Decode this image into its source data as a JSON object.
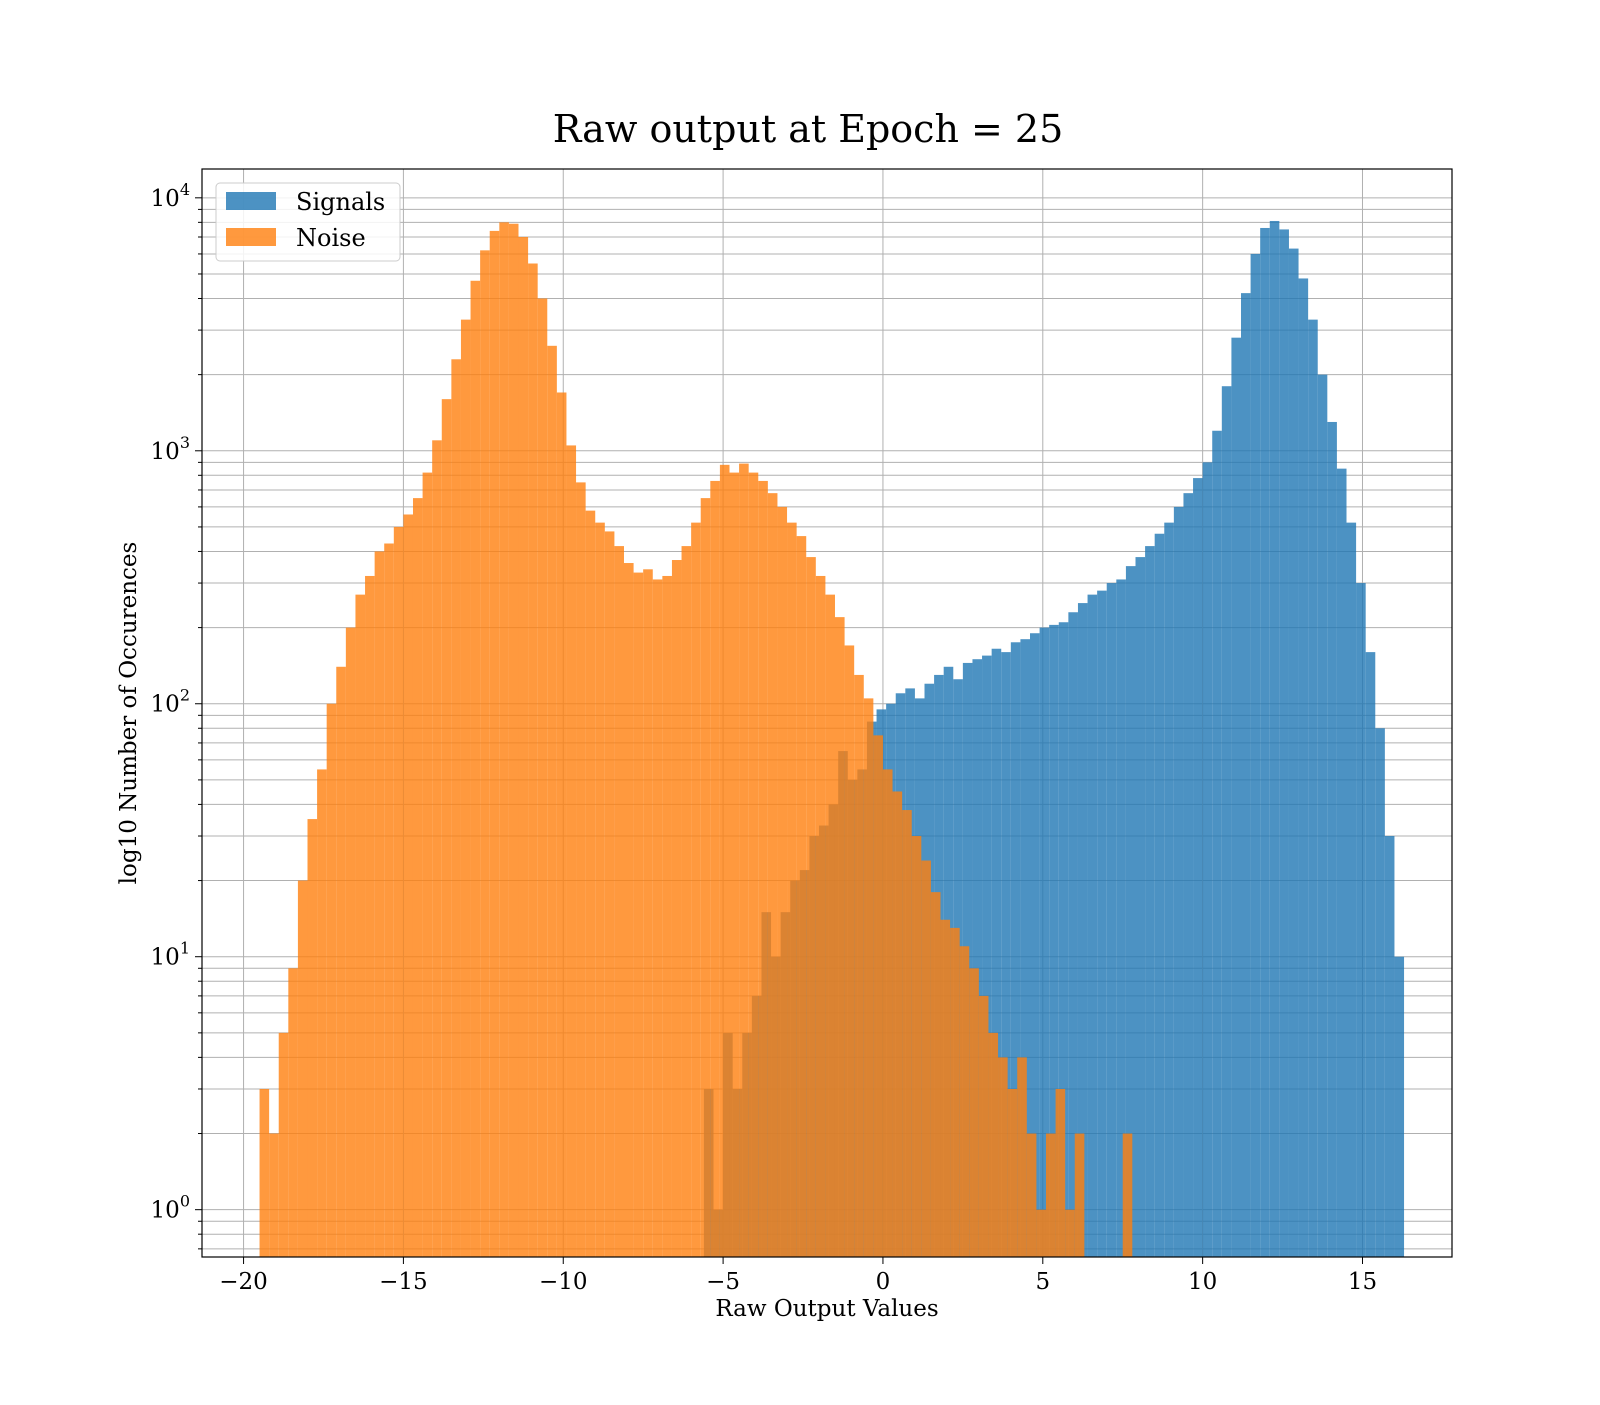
{
  "chart_data": {
    "type": "bar",
    "title": "Raw output at Epoch = 25",
    "xlabel": "Raw Output Values",
    "ylabel": "log10 Number of Occurences",
    "xlim": [
      -21.3,
      17.8
    ],
    "ylim": [
      0.65,
      13000
    ],
    "y_scale": "log",
    "grid": true,
    "legend_position": "top-left",
    "bin_width": 0.3,
    "x_ticks": [
      {
        "value": -20,
        "label": "−20"
      },
      {
        "value": -15,
        "label": "−15"
      },
      {
        "value": -10,
        "label": "−10"
      },
      {
        "value": -5,
        "label": "−5"
      },
      {
        "value": 0,
        "label": "0"
      },
      {
        "value": 5,
        "label": "5"
      },
      {
        "value": 10,
        "label": "10"
      },
      {
        "value": 15,
        "label": "15"
      }
    ],
    "y_ticks": [
      {
        "value": 1,
        "base": "10",
        "exp": "0"
      },
      {
        "value": 10,
        "base": "10",
        "exp": "1"
      },
      {
        "value": 100,
        "base": "10",
        "exp": "2"
      },
      {
        "value": 1000,
        "base": "10",
        "exp": "3"
      },
      {
        "value": 10000,
        "base": "10",
        "exp": "4"
      }
    ],
    "series": [
      {
        "name": "Signals",
        "color": "#1f77b4",
        "opacity": 0.8,
        "bins": [
          {
            "x": -5.6,
            "y": 3
          },
          {
            "x": -5.3,
            "y": 1
          },
          {
            "x": -5.0,
            "y": 5
          },
          {
            "x": -4.7,
            "y": 3
          },
          {
            "x": -4.4,
            "y": 5
          },
          {
            "x": -4.1,
            "y": 7
          },
          {
            "x": -3.8,
            "y": 15
          },
          {
            "x": -3.5,
            "y": 10
          },
          {
            "x": -3.2,
            "y": 15
          },
          {
            "x": -2.9,
            "y": 20
          },
          {
            "x": -2.6,
            "y": 22
          },
          {
            "x": -2.3,
            "y": 30
          },
          {
            "x": -2.0,
            "y": 33
          },
          {
            "x": -1.7,
            "y": 40
          },
          {
            "x": -1.4,
            "y": 65
          },
          {
            "x": -1.1,
            "y": 50
          },
          {
            "x": -0.8,
            "y": 55
          },
          {
            "x": -0.5,
            "y": 85
          },
          {
            "x": -0.2,
            "y": 95
          },
          {
            "x": 0.1,
            "y": 100
          },
          {
            "x": 0.4,
            "y": 110
          },
          {
            "x": 0.7,
            "y": 115
          },
          {
            "x": 1.0,
            "y": 105
          },
          {
            "x": 1.3,
            "y": 120
          },
          {
            "x": 1.6,
            "y": 130
          },
          {
            "x": 1.9,
            "y": 140
          },
          {
            "x": 2.2,
            "y": 125
          },
          {
            "x": 2.5,
            "y": 145
          },
          {
            "x": 2.8,
            "y": 150
          },
          {
            "x": 3.1,
            "y": 155
          },
          {
            "x": 3.4,
            "y": 165
          },
          {
            "x": 3.7,
            "y": 160
          },
          {
            "x": 4.0,
            "y": 175
          },
          {
            "x": 4.3,
            "y": 180
          },
          {
            "x": 4.6,
            "y": 190
          },
          {
            "x": 4.9,
            "y": 200
          },
          {
            "x": 5.2,
            "y": 205
          },
          {
            "x": 5.5,
            "y": 210
          },
          {
            "x": 5.8,
            "y": 230
          },
          {
            "x": 6.1,
            "y": 250
          },
          {
            "x": 6.4,
            "y": 270
          },
          {
            "x": 6.7,
            "y": 280
          },
          {
            "x": 7.0,
            "y": 300
          },
          {
            "x": 7.3,
            "y": 310
          },
          {
            "x": 7.6,
            "y": 350
          },
          {
            "x": 7.9,
            "y": 380
          },
          {
            "x": 8.2,
            "y": 420
          },
          {
            "x": 8.5,
            "y": 470
          },
          {
            "x": 8.8,
            "y": 520
          },
          {
            "x": 9.1,
            "y": 600
          },
          {
            "x": 9.4,
            "y": 680
          },
          {
            "x": 9.7,
            "y": 780
          },
          {
            "x": 10.0,
            "y": 900
          },
          {
            "x": 10.3,
            "y": 1200
          },
          {
            "x": 10.6,
            "y": 1800
          },
          {
            "x": 10.9,
            "y": 2800
          },
          {
            "x": 11.2,
            "y": 4200
          },
          {
            "x": 11.5,
            "y": 6000
          },
          {
            "x": 11.8,
            "y": 7600
          },
          {
            "x": 12.1,
            "y": 8100
          },
          {
            "x": 12.4,
            "y": 7500
          },
          {
            "x": 12.7,
            "y": 6300
          },
          {
            "x": 13.0,
            "y": 4800
          },
          {
            "x": 13.3,
            "y": 3300
          },
          {
            "x": 13.6,
            "y": 2000
          },
          {
            "x": 13.9,
            "y": 1300
          },
          {
            "x": 14.2,
            "y": 850
          },
          {
            "x": 14.5,
            "y": 520
          },
          {
            "x": 14.8,
            "y": 300
          },
          {
            "x": 15.1,
            "y": 160
          },
          {
            "x": 15.4,
            "y": 80
          },
          {
            "x": 15.7,
            "y": 30
          },
          {
            "x": 16.0,
            "y": 10
          }
        ]
      },
      {
        "name": "Noise",
        "color": "#ff7f0e",
        "opacity": 0.8,
        "bins": [
          {
            "x": -19.5,
            "y": 3
          },
          {
            "x": -19.2,
            "y": 2
          },
          {
            "x": -18.9,
            "y": 5
          },
          {
            "x": -18.6,
            "y": 9
          },
          {
            "x": -18.3,
            "y": 20
          },
          {
            "x": -18.0,
            "y": 35
          },
          {
            "x": -17.7,
            "y": 55
          },
          {
            "x": -17.4,
            "y": 100
          },
          {
            "x": -17.1,
            "y": 140
          },
          {
            "x": -16.8,
            "y": 200
          },
          {
            "x": -16.5,
            "y": 270
          },
          {
            "x": -16.2,
            "y": 320
          },
          {
            "x": -15.9,
            "y": 400
          },
          {
            "x": -15.6,
            "y": 430
          },
          {
            "x": -15.3,
            "y": 500
          },
          {
            "x": -15.0,
            "y": 560
          },
          {
            "x": -14.7,
            "y": 650
          },
          {
            "x": -14.4,
            "y": 820
          },
          {
            "x": -14.1,
            "y": 1100
          },
          {
            "x": -13.8,
            "y": 1600
          },
          {
            "x": -13.5,
            "y": 2300
          },
          {
            "x": -13.2,
            "y": 3300
          },
          {
            "x": -12.9,
            "y": 4700
          },
          {
            "x": -12.6,
            "y": 6200
          },
          {
            "x": -12.3,
            "y": 7400
          },
          {
            "x": -12.0,
            "y": 8000
          },
          {
            "x": -11.7,
            "y": 7900
          },
          {
            "x": -11.4,
            "y": 7000
          },
          {
            "x": -11.1,
            "y": 5500
          },
          {
            "x": -10.8,
            "y": 4000
          },
          {
            "x": -10.5,
            "y": 2600
          },
          {
            "x": -10.2,
            "y": 1700
          },
          {
            "x": -9.9,
            "y": 1050
          },
          {
            "x": -9.6,
            "y": 750
          },
          {
            "x": -9.3,
            "y": 580
          },
          {
            "x": -9.0,
            "y": 520
          },
          {
            "x": -8.7,
            "y": 480
          },
          {
            "x": -8.4,
            "y": 420
          },
          {
            "x": -8.1,
            "y": 360
          },
          {
            "x": -7.8,
            "y": 330
          },
          {
            "x": -7.5,
            "y": 340
          },
          {
            "x": -7.2,
            "y": 310
          },
          {
            "x": -6.9,
            "y": 320
          },
          {
            "x": -6.6,
            "y": 370
          },
          {
            "x": -6.3,
            "y": 420
          },
          {
            "x": -6.0,
            "y": 520
          },
          {
            "x": -5.7,
            "y": 650
          },
          {
            "x": -5.4,
            "y": 760
          },
          {
            "x": -5.1,
            "y": 880
          },
          {
            "x": -4.8,
            "y": 820
          },
          {
            "x": -4.5,
            "y": 890
          },
          {
            "x": -4.2,
            "y": 820
          },
          {
            "x": -3.9,
            "y": 760
          },
          {
            "x": -3.6,
            "y": 680
          },
          {
            "x": -3.3,
            "y": 600
          },
          {
            "x": -3.0,
            "y": 520
          },
          {
            "x": -2.7,
            "y": 460
          },
          {
            "x": -2.4,
            "y": 380
          },
          {
            "x": -2.1,
            "y": 320
          },
          {
            "x": -1.8,
            "y": 270
          },
          {
            "x": -1.5,
            "y": 220
          },
          {
            "x": -1.2,
            "y": 170
          },
          {
            "x": -0.9,
            "y": 130
          },
          {
            "x": -0.6,
            "y": 105
          },
          {
            "x": -0.3,
            "y": 75
          },
          {
            "x": 0.0,
            "y": 55
          },
          {
            "x": 0.3,
            "y": 45
          },
          {
            "x": 0.6,
            "y": 38
          },
          {
            "x": 0.9,
            "y": 30
          },
          {
            "x": 1.2,
            "y": 24
          },
          {
            "x": 1.5,
            "y": 18
          },
          {
            "x": 1.8,
            "y": 14
          },
          {
            "x": 2.1,
            "y": 13
          },
          {
            "x": 2.4,
            "y": 11
          },
          {
            "x": 2.7,
            "y": 9
          },
          {
            "x": 3.0,
            "y": 7
          },
          {
            "x": 3.3,
            "y": 5
          },
          {
            "x": 3.6,
            "y": 4
          },
          {
            "x": 3.9,
            "y": 3
          },
          {
            "x": 4.2,
            "y": 4
          },
          {
            "x": 4.5,
            "y": 2
          },
          {
            "x": 4.8,
            "y": 1
          },
          {
            "x": 5.1,
            "y": 2
          },
          {
            "x": 5.4,
            "y": 3
          },
          {
            "x": 5.7,
            "y": 1
          },
          {
            "x": 6.0,
            "y": 2
          },
          {
            "x": 7.5,
            "y": 2
          }
        ]
      }
    ]
  }
}
